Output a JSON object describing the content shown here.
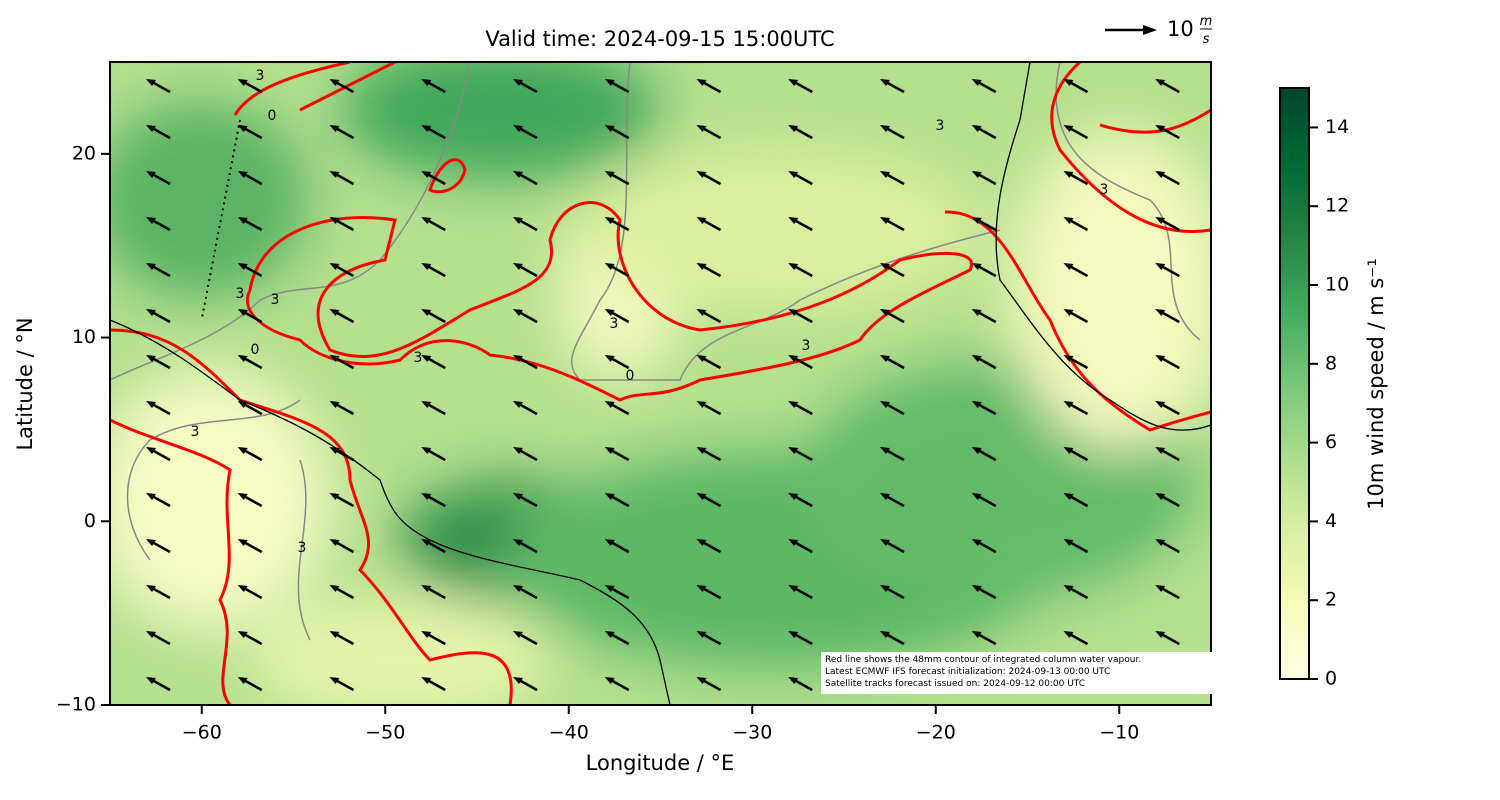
{
  "chart_data": {
    "type": "map",
    "title": "Valid time: 2024-09-15 15:00UTC",
    "x_label": "Longitude / °E",
    "y_label": "Latitude / °N",
    "xlim": [
      -65,
      -5
    ],
    "ylim": [
      -10,
      25
    ],
    "xticks": [
      {
        "value": -60,
        "label": "−60"
      },
      {
        "value": -50,
        "label": "−50"
      },
      {
        "value": -40,
        "label": "−40"
      },
      {
        "value": -30,
        "label": "−30"
      },
      {
        "value": -20,
        "label": "−20"
      },
      {
        "value": -10,
        "label": "−10"
      }
    ],
    "yticks": [
      {
        "value": -10,
        "label": "−10"
      },
      0,
      10,
      20
    ],
    "colorbar": {
      "label": "10m wind speed / m s⁻¹",
      "lim": [
        0,
        15
      ],
      "ticks": [
        0,
        2,
        4,
        6,
        8,
        10,
        12,
        14
      ],
      "colors": [
        "#ffffe5",
        "#f7fcb9",
        "#d9f0a3",
        "#addd8e",
        "#78c679",
        "#41ab5d",
        "#238443",
        "#006837",
        "#004529"
      ]
    },
    "quiver_key": {
      "label": "10",
      "unit_numerator": "m",
      "unit_denominator": "s"
    },
    "contour_color": "#ff0000",
    "contour_labels": [
      "3",
      "3",
      "3",
      "3",
      "3",
      "3",
      "3",
      "3",
      "3",
      "3",
      "0",
      "0",
      "0"
    ],
    "note": [
      "Red line shows the 48mm contour of integrated column water vapour.",
      "Latest ECMWF IFS forecast initialization: 2024-09-13 00:00 UTC",
      "Satellite tracks forecast issued on: 2024-09-12 00:00 UTC"
    ]
  }
}
